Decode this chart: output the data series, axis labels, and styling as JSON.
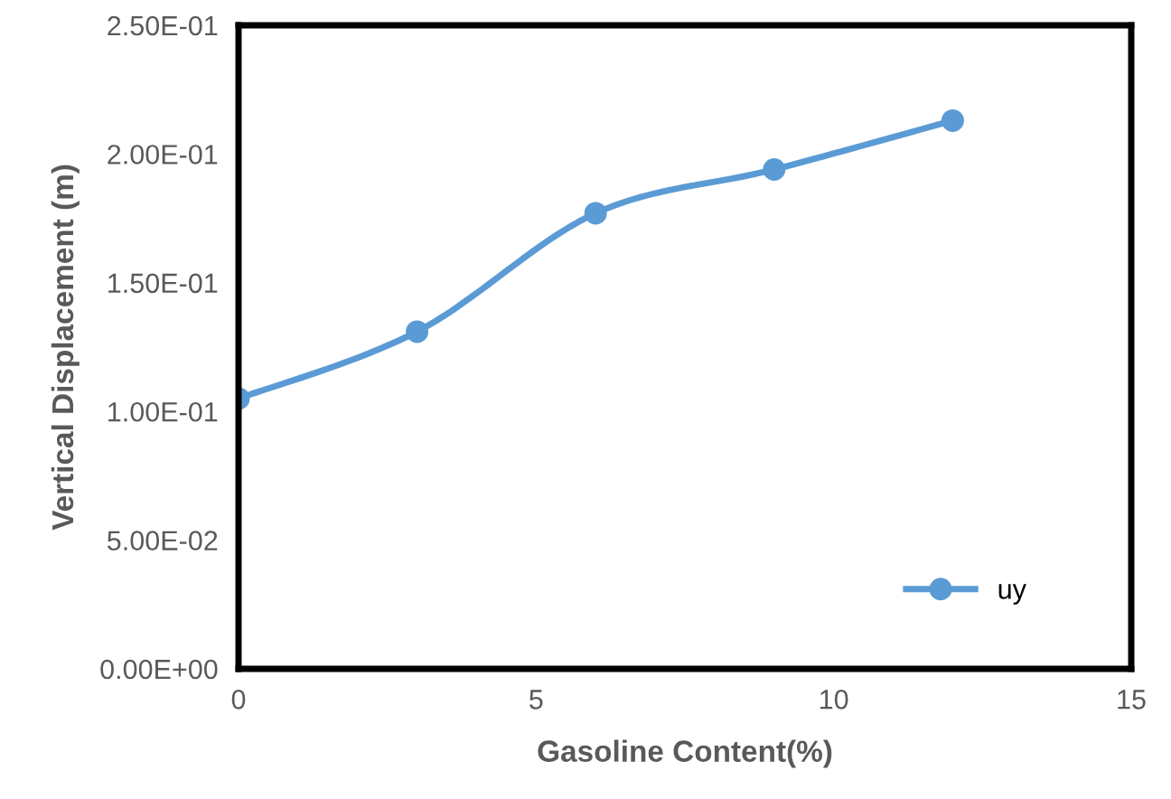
{
  "chart_data": {
    "type": "line",
    "xlabel": "Gasoline Content(%)",
    "ylabel": "Vertical Displacement (m)",
    "x": [
      0,
      3,
      6,
      9,
      12
    ],
    "series": [
      {
        "name": "uy",
        "color": "#5b9bd5",
        "values": [
          0.105,
          0.131,
          0.177,
          0.194,
          0.213
        ]
      }
    ],
    "xlim": [
      0,
      15
    ],
    "xticks": [
      0,
      5,
      10,
      15
    ],
    "ylim": [
      0,
      0.25
    ],
    "yticks": [
      {
        "value": 0,
        "label": "0.00E+00"
      },
      {
        "value": 0.05,
        "label": "5.00E-02"
      },
      {
        "value": 0.1,
        "label": "1.00E-01"
      },
      {
        "value": 0.15,
        "label": "1.50E-01"
      },
      {
        "value": 0.2,
        "label": "2.00E-01"
      },
      {
        "value": 0.25,
        "label": "2.50E-01"
      }
    ],
    "grid": false,
    "legend": "bottom right",
    "marker": "circle",
    "line_style": "solid"
  }
}
